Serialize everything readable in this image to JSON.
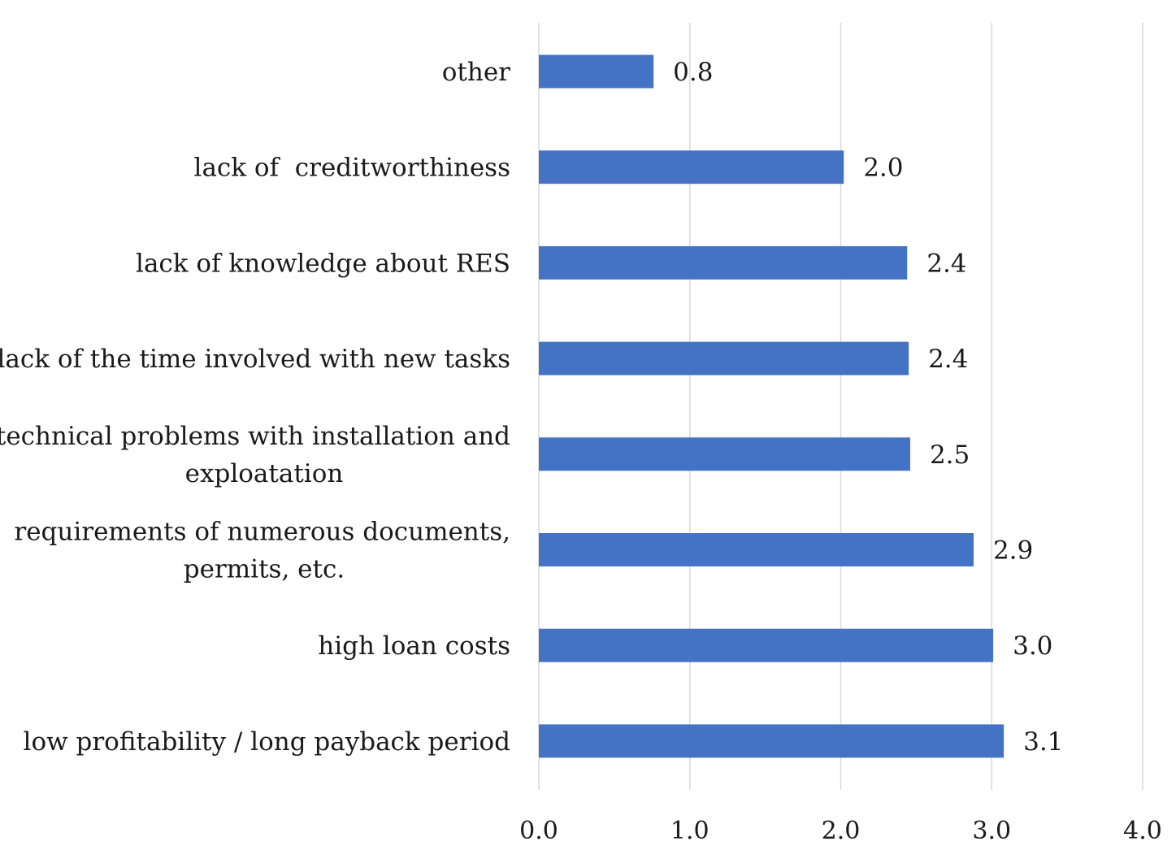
{
  "chart_data": {
    "type": "bar",
    "orientation": "horizontal",
    "title": "",
    "xlabel": "",
    "ylabel": "",
    "xlim": [
      0,
      4
    ],
    "x_ticks": [
      "0.0",
      "1.0",
      "2.0",
      "3.0",
      "4.0"
    ],
    "grid": true,
    "bar_color": "#4472C4",
    "categories": [
      [
        "other"
      ],
      [
        "lack of  creditworthiness"
      ],
      [
        "lack of knowledge about RES"
      ],
      [
        "lack of the time involved with new tasks"
      ],
      [
        "technical problems with installation and",
        "exploatation"
      ],
      [
        "requirements of numerous documents,",
        "permits, etc."
      ],
      [
        "high loan costs"
      ],
      [
        "low profitability / long payback period"
      ]
    ],
    "values": [
      0.76,
      2.02,
      2.44,
      2.45,
      2.46,
      2.88,
      3.01,
      3.08
    ],
    "value_labels": [
      "0.8",
      "2.0",
      "2.4",
      "2.4",
      "2.5",
      "2.9",
      "3.0",
      "3.1"
    ]
  }
}
